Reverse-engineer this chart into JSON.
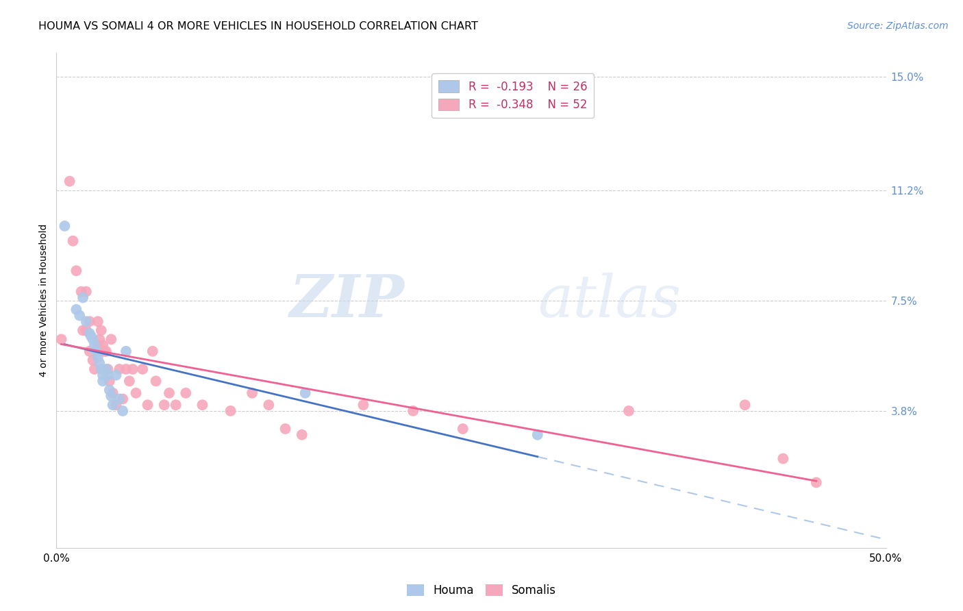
{
  "title": "HOUMA VS SOMALI 4 OR MORE VEHICLES IN HOUSEHOLD CORRELATION CHART",
  "source": "Source: ZipAtlas.com",
  "ylabel_label": "4 or more Vehicles in Household",
  "legend_houma": "R =  -0.193    N = 26",
  "legend_somali": "R =  -0.348    N = 52",
  "houma_color": "#adc8e8",
  "somali_color": "#f5a8bc",
  "houma_line_color": "#4472c4",
  "somali_line_color": "#f06090",
  "dashed_line_color": "#b0c8e8",
  "watermark_zip": "ZIP",
  "watermark_atlas": "atlas",
  "xlim": [
    0.0,
    0.5
  ],
  "ylim": [
    -0.008,
    0.158
  ],
  "yticks": [
    0.038,
    0.075,
    0.112,
    0.15
  ],
  "ytick_labels": [
    "3.8%",
    "7.5%",
    "11.2%",
    "15.0%"
  ],
  "xticks": [
    0.0,
    0.1,
    0.2,
    0.3,
    0.4,
    0.5
  ],
  "xtick_labels": [
    "0.0%",
    "",
    "",
    "",
    "",
    "50.0%"
  ],
  "grid_color": "#cccccc",
  "houma_x": [
    0.005,
    0.012,
    0.014,
    0.016,
    0.018,
    0.02,
    0.021,
    0.022,
    0.023,
    0.024,
    0.025,
    0.026,
    0.027,
    0.028,
    0.028,
    0.03,
    0.031,
    0.032,
    0.033,
    0.034,
    0.036,
    0.038,
    0.04,
    0.042,
    0.15,
    0.29
  ],
  "houma_y": [
    0.1,
    0.072,
    0.07,
    0.076,
    0.068,
    0.064,
    0.063,
    0.062,
    0.06,
    0.058,
    0.056,
    0.054,
    0.052,
    0.05,
    0.048,
    0.052,
    0.05,
    0.045,
    0.043,
    0.04,
    0.05,
    0.042,
    0.038,
    0.058,
    0.044,
    0.03
  ],
  "somali_x": [
    0.003,
    0.008,
    0.01,
    0.012,
    0.015,
    0.016,
    0.018,
    0.018,
    0.02,
    0.02,
    0.022,
    0.023,
    0.025,
    0.025,
    0.026,
    0.026,
    0.027,
    0.028,
    0.029,
    0.03,
    0.031,
    0.032,
    0.033,
    0.034,
    0.036,
    0.038,
    0.04,
    0.042,
    0.044,
    0.046,
    0.048,
    0.052,
    0.055,
    0.058,
    0.06,
    0.065,
    0.068,
    0.072,
    0.078,
    0.088,
    0.105,
    0.118,
    0.128,
    0.138,
    0.148,
    0.185,
    0.215,
    0.245,
    0.345,
    0.415,
    0.438,
    0.458
  ],
  "somali_y": [
    0.062,
    0.115,
    0.095,
    0.085,
    0.078,
    0.065,
    0.078,
    0.065,
    0.068,
    0.058,
    0.055,
    0.052,
    0.068,
    0.06,
    0.062,
    0.058,
    0.065,
    0.06,
    0.058,
    0.058,
    0.052,
    0.048,
    0.062,
    0.044,
    0.04,
    0.052,
    0.042,
    0.052,
    0.048,
    0.052,
    0.044,
    0.052,
    0.04,
    0.058,
    0.048,
    0.04,
    0.044,
    0.04,
    0.044,
    0.04,
    0.038,
    0.044,
    0.04,
    0.032,
    0.03,
    0.04,
    0.038,
    0.032,
    0.038,
    0.04,
    0.022,
    0.014
  ],
  "title_fontsize": 11.5,
  "axis_label_fontsize": 10,
  "tick_fontsize": 11,
  "legend_fontsize": 12,
  "source_fontsize": 10,
  "scatter_size": 130
}
